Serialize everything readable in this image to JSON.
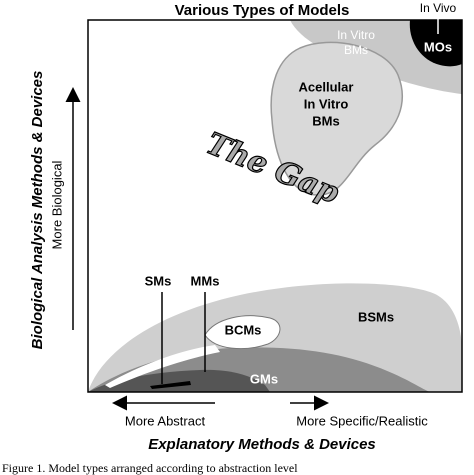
{
  "title": "Various Types of Models",
  "regions": {
    "in_vivo": "In Vivo",
    "mos": "MOs",
    "in_vitro_bms": [
      "In Vitro",
      "BMs"
    ],
    "acellular": [
      "Acellular",
      "In Vitro",
      "BMs"
    ],
    "gap": "The Gap",
    "sms": "SMs",
    "mms": "MMs",
    "bcms": "BCMs",
    "bsms": "BSMs",
    "gms": "GMs"
  },
  "y_axis": {
    "label": "Biological Analysis Methods & Devices",
    "arrow_label": "More Biological"
  },
  "x_axis": {
    "label": "Explanatory Methods & Devices",
    "left_label": "More Abstract",
    "right_label": "More Specific/Realistic"
  },
  "caption": "Figure 1.  Model types arranged according to abstraction level"
}
